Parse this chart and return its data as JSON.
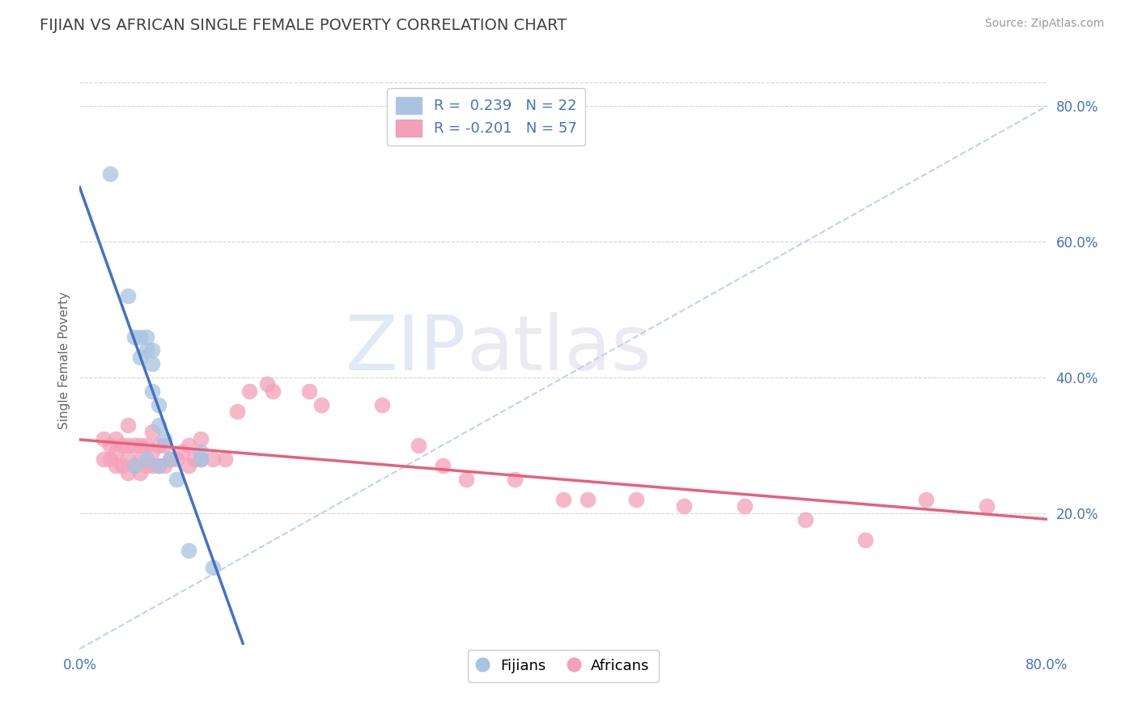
{
  "title": "FIJIAN VS AFRICAN SINGLE FEMALE POVERTY CORRELATION CHART",
  "source": "Source: ZipAtlas.com",
  "ylabel": "Single Female Poverty",
  "xlim": [
    0.0,
    0.8
  ],
  "ylim": [
    0.0,
    0.85
  ],
  "fijian_color": "#a8c4e0",
  "african_color": "#f4a0b8",
  "fijian_line_color": "#4472c4",
  "african_line_color": "#e8607a",
  "dashed_line_color": "#b0c8e8",
  "legend_fijian_label": "R =  0.239   N = 22",
  "legend_african_label": "R = -0.201   N = 57",
  "background_color": "#ffffff",
  "grid_color": "#cccccc",
  "title_color": "#404040",
  "axis_color": "#4472c4",
  "watermark_zip": "ZIP",
  "watermark_atlas": "atlas",
  "fijian_x": [
    0.025,
    0.04,
    0.045,
    0.05,
    0.05,
    0.055,
    0.055,
    0.06,
    0.06,
    0.06,
    0.065,
    0.065,
    0.07,
    0.075,
    0.08,
    0.09,
    0.1,
    0.1,
    0.045,
    0.055,
    0.065,
    0.11
  ],
  "fijian_y": [
    0.7,
    0.52,
    0.46,
    0.43,
    0.46,
    0.44,
    0.46,
    0.42,
    0.44,
    0.38,
    0.33,
    0.36,
    0.31,
    0.28,
    0.25,
    0.145,
    0.28,
    0.29,
    0.27,
    0.28,
    0.27,
    0.12
  ],
  "african_x": [
    0.02,
    0.02,
    0.025,
    0.025,
    0.03,
    0.03,
    0.03,
    0.035,
    0.035,
    0.04,
    0.04,
    0.04,
    0.04,
    0.045,
    0.045,
    0.05,
    0.05,
    0.05,
    0.055,
    0.055,
    0.06,
    0.06,
    0.06,
    0.065,
    0.065,
    0.07,
    0.07,
    0.075,
    0.08,
    0.085,
    0.09,
    0.09,
    0.095,
    0.1,
    0.1,
    0.11,
    0.12,
    0.13,
    0.14,
    0.155,
    0.16,
    0.19,
    0.2,
    0.25,
    0.28,
    0.3,
    0.32,
    0.36,
    0.4,
    0.42,
    0.46,
    0.5,
    0.55,
    0.6,
    0.65,
    0.7,
    0.75
  ],
  "african_y": [
    0.28,
    0.31,
    0.28,
    0.3,
    0.27,
    0.29,
    0.31,
    0.27,
    0.3,
    0.26,
    0.28,
    0.3,
    0.33,
    0.27,
    0.3,
    0.26,
    0.28,
    0.3,
    0.27,
    0.3,
    0.27,
    0.29,
    0.32,
    0.27,
    0.3,
    0.27,
    0.3,
    0.28,
    0.28,
    0.29,
    0.27,
    0.3,
    0.28,
    0.28,
    0.31,
    0.28,
    0.28,
    0.35,
    0.38,
    0.39,
    0.38,
    0.38,
    0.36,
    0.36,
    0.3,
    0.27,
    0.25,
    0.25,
    0.22,
    0.22,
    0.22,
    0.21,
    0.21,
    0.19,
    0.16,
    0.22,
    0.21
  ]
}
